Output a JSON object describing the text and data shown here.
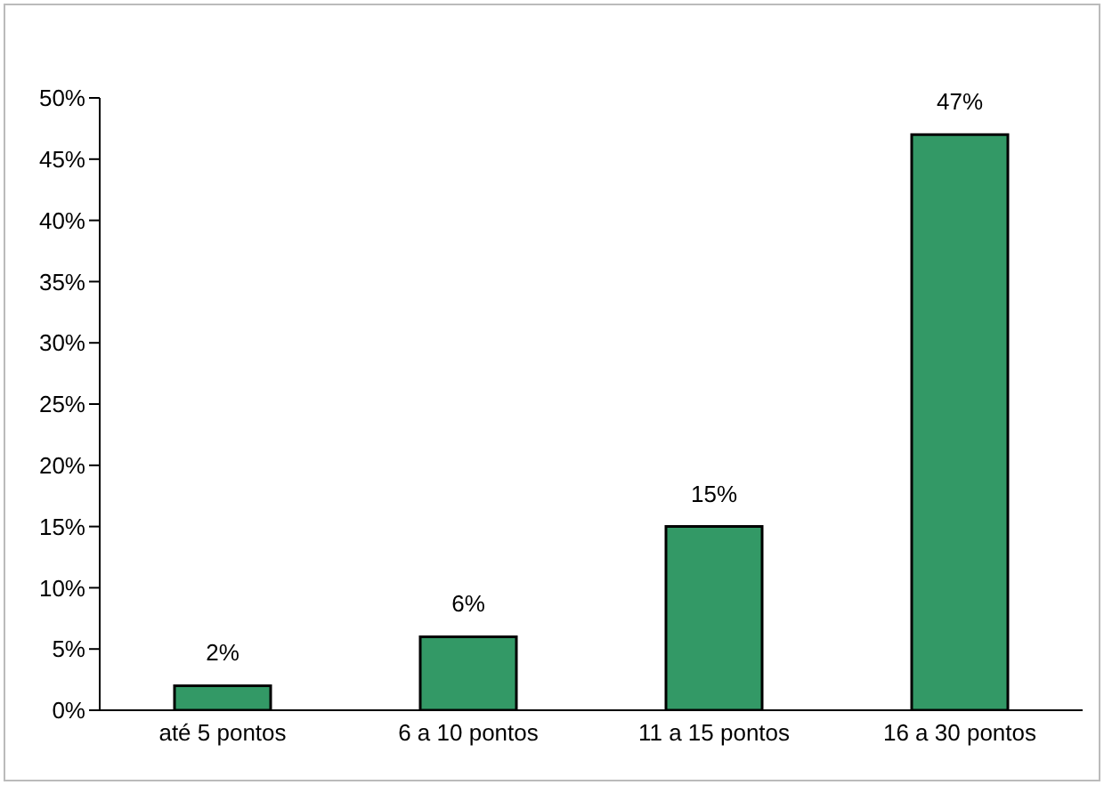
{
  "chart_data": {
    "type": "bar",
    "categories": [
      "até 5 pontos",
      "6 a 10 pontos",
      "11 a 15 pontos",
      "16 a 30 pontos"
    ],
    "values": [
      2,
      6,
      15,
      47
    ],
    "value_labels": [
      "2%",
      "6%",
      "15%",
      "47%"
    ],
    "color": "#339966",
    "ylim": [
      0,
      50
    ],
    "yticks": [
      {
        "value": 0,
        "label": "0%"
      },
      {
        "value": 5,
        "label": "5%"
      },
      {
        "value": 10,
        "label": "10%"
      },
      {
        "value": 15,
        "label": "15%"
      },
      {
        "value": 20,
        "label": "20%"
      },
      {
        "value": 25,
        "label": "25%"
      },
      {
        "value": 30,
        "label": "30%"
      },
      {
        "value": 35,
        "label": "35%"
      },
      {
        "value": 40,
        "label": "40%"
      },
      {
        "value": 45,
        "label": "45%"
      },
      {
        "value": 50,
        "label": "50%"
      }
    ],
    "grid": false,
    "legend": false
  }
}
